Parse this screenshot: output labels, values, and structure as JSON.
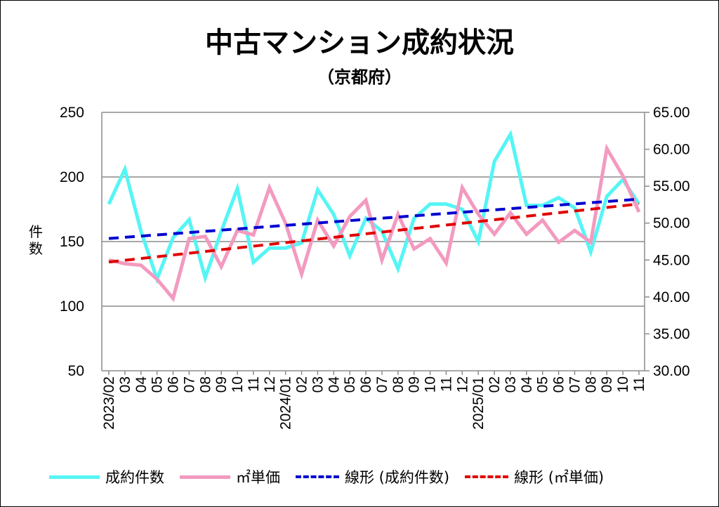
{
  "title": "中古マンション成約状況",
  "subtitle": "（京都府）",
  "chart_data": {
    "type": "line",
    "title": "中古マンション成約状況",
    "subtitle": "（京都府）",
    "ylabel": "件数",
    "ylim": [
      50,
      250
    ],
    "y_ticks": [
      "250",
      "200",
      "150",
      "100",
      "50"
    ],
    "y2lim": [
      30,
      65
    ],
    "y2_ticks": [
      "65.00",
      "60.00",
      "55.00",
      "50.00",
      "45.00",
      "40.00",
      "35.00",
      "30.00"
    ],
    "x_labels": [
      "2023/02",
      "03",
      "04",
      "05",
      "06",
      "07",
      "08",
      "09",
      "10",
      "11",
      "12",
      "2024/01",
      "02",
      "03",
      "04",
      "05",
      "06",
      "07",
      "08",
      "09",
      "10",
      "11",
      "12",
      "2025/01",
      "02",
      "03",
      "04",
      "05",
      "06",
      "07",
      "08",
      "09",
      "10",
      "11"
    ],
    "grid": true,
    "legend_position": "bottom",
    "series": [
      {
        "name": "成約件数",
        "axis": "left",
        "color": "#55f5f5",
        "values": [
          179,
          206,
          158,
          121,
          153,
          167,
          122,
          158,
          191,
          134,
          145,
          145,
          149,
          190,
          171,
          139,
          168,
          158,
          129,
          168,
          179,
          179,
          175,
          150,
          212,
          233,
          178,
          178,
          184,
          176,
          142,
          185,
          198,
          179
        ]
      },
      {
        "name": "㎡単価",
        "axis": "right",
        "color": "#f39ac0",
        "values": [
          45.0,
          44.5,
          44.3,
          42.4,
          39.8,
          47.9,
          48.2,
          44.1,
          49.0,
          48.4,
          54.8,
          50.0,
          43.1,
          50.4,
          46.9,
          50.9,
          53.1,
          45.0,
          51.2,
          46.5,
          47.9,
          44.6,
          54.8,
          51.2,
          48.5,
          51.4,
          48.5,
          50.4,
          47.4,
          49.0,
          47.4,
          60.1,
          56.4,
          51.5
        ]
      },
      {
        "name": "線形 (成約件数)",
        "type": "trendline",
        "of": 0,
        "color": "#0000d0"
      },
      {
        "name": "線形 (㎡単価)",
        "type": "trendline",
        "of": 1,
        "color": "#e00000"
      }
    ]
  }
}
